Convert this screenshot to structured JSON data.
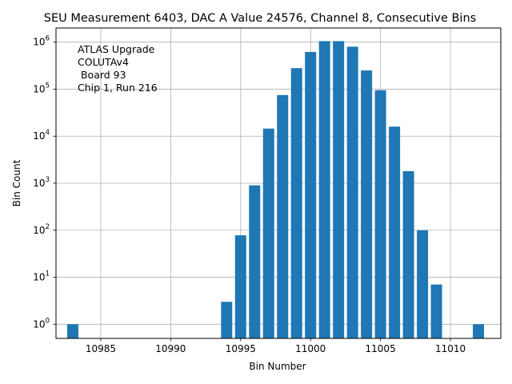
{
  "chart_data": {
    "type": "bar",
    "title": "SEU Measurement 6403, DAC A Value 24576, Channel 8, Consecutive Bins",
    "xlabel": "Bin Number",
    "ylabel": "Bin Count",
    "xlim": [
      10981.8,
      11013.6
    ],
    "ylim": [
      0.5,
      2000000
    ],
    "yscale": "log",
    "grid": true,
    "bar_color": "#1f77b4",
    "x_ticks": [
      {
        "value": 10985,
        "label": "10985"
      },
      {
        "value": 10990,
        "label": "10990"
      },
      {
        "value": 10995,
        "label": "10995"
      },
      {
        "value": 11000,
        "label": "11000"
      },
      {
        "value": 11005,
        "label": "11005"
      },
      {
        "value": 11010,
        "label": "11010"
      }
    ],
    "y_ticks": [
      {
        "value": 1,
        "base": "10",
        "exp": "0"
      },
      {
        "value": 10,
        "base": "10",
        "exp": "1"
      },
      {
        "value": 100,
        "base": "10",
        "exp": "2"
      },
      {
        "value": 1000,
        "base": "10",
        "exp": "3"
      },
      {
        "value": 10000,
        "base": "10",
        "exp": "4"
      },
      {
        "value": 100000,
        "base": "10",
        "exp": "5"
      },
      {
        "value": 1000000,
        "base": "10",
        "exp": "6"
      }
    ],
    "annotation": [
      "ATLAS Upgrade",
      "COLUTAv4",
      " Board 93",
      "Chip 1, Run 216"
    ],
    "bars": [
      {
        "x": 10983,
        "y": 1
      },
      {
        "x": 10994,
        "y": 3
      },
      {
        "x": 10995,
        "y": 78
      },
      {
        "x": 10996,
        "y": 900
      },
      {
        "x": 10997,
        "y": 14500
      },
      {
        "x": 10998,
        "y": 75000
      },
      {
        "x": 10999,
        "y": 280000
      },
      {
        "x": 11000,
        "y": 620000
      },
      {
        "x": 11001,
        "y": 1050000
      },
      {
        "x": 11002,
        "y": 1050000
      },
      {
        "x": 11003,
        "y": 800000
      },
      {
        "x": 11004,
        "y": 250000
      },
      {
        "x": 11005,
        "y": 95000
      },
      {
        "x": 11006,
        "y": 16000
      },
      {
        "x": 11007,
        "y": 1800
      },
      {
        "x": 11008,
        "y": 100
      },
      {
        "x": 11009,
        "y": 7
      },
      {
        "x": 11012,
        "y": 1
      }
    ]
  }
}
